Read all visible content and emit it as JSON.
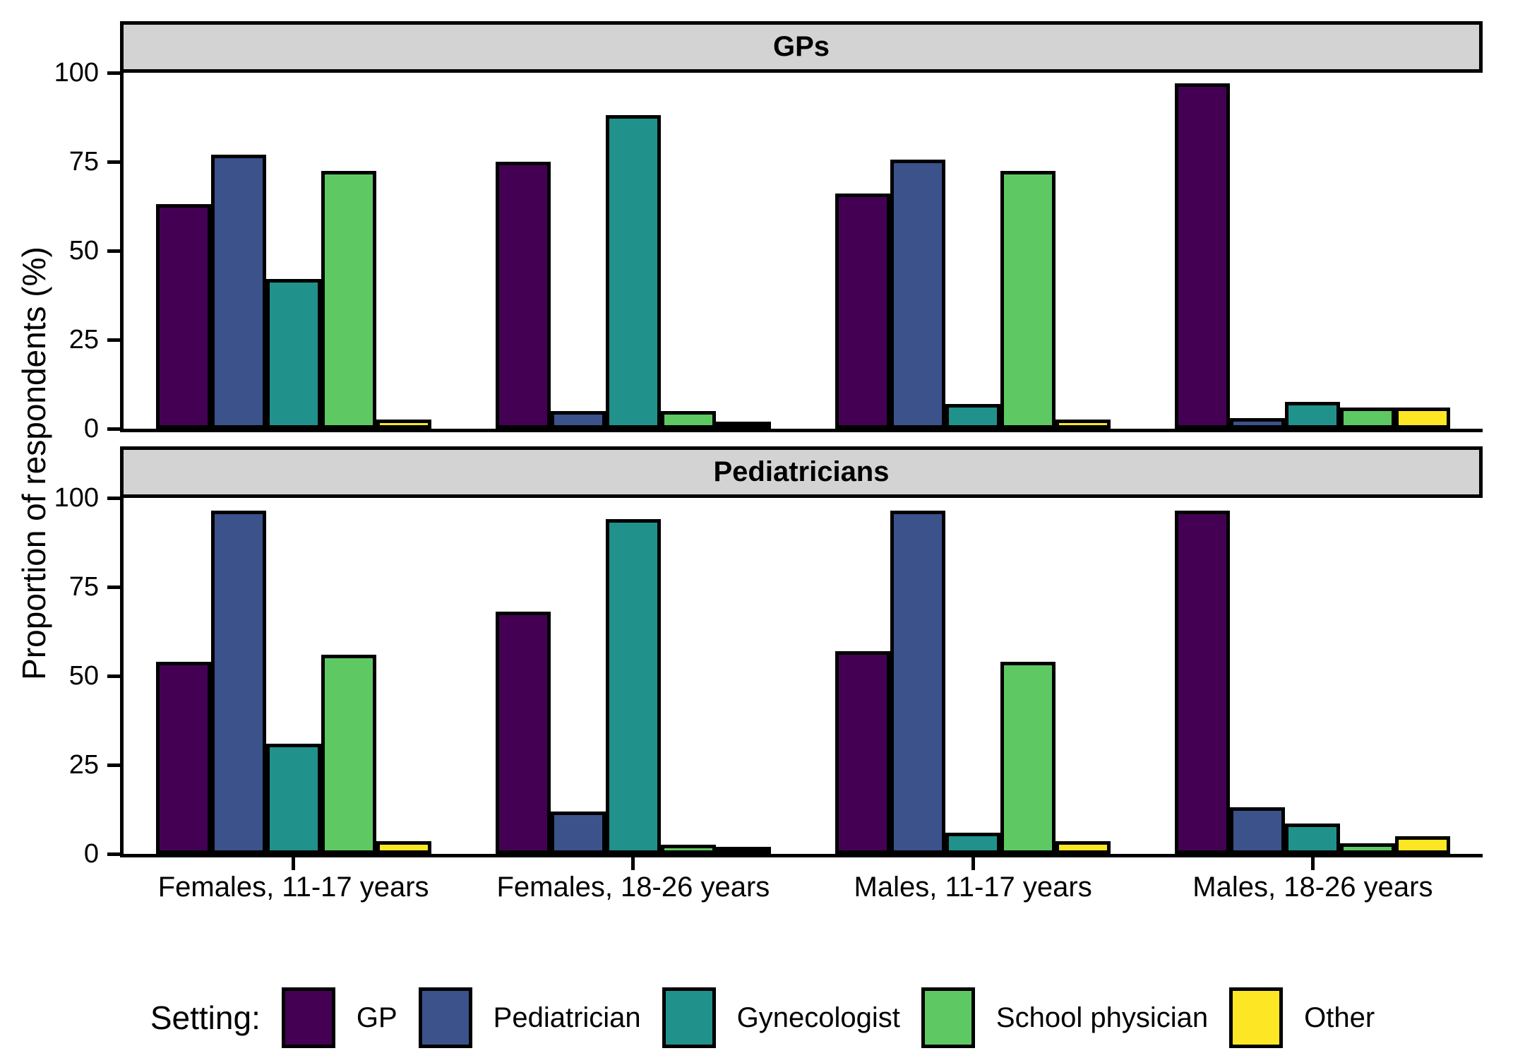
{
  "figure": {
    "y_axis_title": "Proportion of respondents (%)",
    "y_ticks": [
      0,
      25,
      50,
      75,
      100
    ],
    "x_categories": [
      "Females, 11-17 years",
      "Females, 18-26 years",
      "Males, 11-17 years",
      "Males, 18-26 years"
    ],
    "legend": {
      "title": "Setting:",
      "entries": [
        "GP",
        "Pediatrician",
        "Gynecologist",
        "School physician",
        "Other"
      ]
    },
    "colors": {
      "gp": "#440154",
      "pediatrician": "#3b528b",
      "gynecologist": "#21918c",
      "school_physician": "#5ec962",
      "other": "#fde725",
      "panel_header_bg": "#d3d3d3",
      "axis": "#000000"
    }
  },
  "chart_data": [
    {
      "type": "bar",
      "title": "GPs",
      "categories": [
        "Females, 11-17 years",
        "Females, 18-26 years",
        "Males, 11-17 years",
        "Males, 18-26 years"
      ],
      "series": [
        {
          "name": "GP",
          "color": "#440154",
          "values": [
            63,
            75,
            66,
            97
          ]
        },
        {
          "name": "Pediatrician",
          "color": "#3b528b",
          "values": [
            77,
            5,
            75.5,
            3
          ]
        },
        {
          "name": "Gynecologist",
          "color": "#21918c",
          "values": [
            42,
            88,
            7,
            7.5
          ]
        },
        {
          "name": "School physician",
          "color": "#5ec962",
          "values": [
            72.5,
            5,
            72.5,
            6
          ]
        },
        {
          "name": "Other",
          "color": "#fde725",
          "values": [
            2.5,
            1,
            2.5,
            6
          ]
        }
      ],
      "xlabel": "",
      "ylabel": "Proportion of respondents (%)",
      "ylim": [
        0,
        100
      ],
      "grid": false,
      "legend_position": "bottom"
    },
    {
      "type": "bar",
      "title": "Pediatricians",
      "categories": [
        "Females, 11-17 years",
        "Females, 18-26 years",
        "Males, 11-17 years",
        "Males, 18-26 years"
      ],
      "series": [
        {
          "name": "GP",
          "color": "#440154",
          "values": [
            54,
            68,
            57,
            96.5
          ]
        },
        {
          "name": "Pediatrician",
          "color": "#3b528b",
          "values": [
            96.5,
            12,
            96.5,
            13
          ]
        },
        {
          "name": "Gynecologist",
          "color": "#21918c",
          "values": [
            31,
            94,
            6,
            8.5
          ]
        },
        {
          "name": "School physician",
          "color": "#5ec962",
          "values": [
            56,
            2.5,
            54,
            3
          ]
        },
        {
          "name": "Other",
          "color": "#fde725",
          "values": [
            3.5,
            2,
            3.5,
            5
          ]
        }
      ],
      "xlabel": "",
      "ylabel": "Proportion of respondents (%)",
      "ylim": [
        0,
        100
      ],
      "grid": false,
      "legend_position": "bottom"
    }
  ]
}
